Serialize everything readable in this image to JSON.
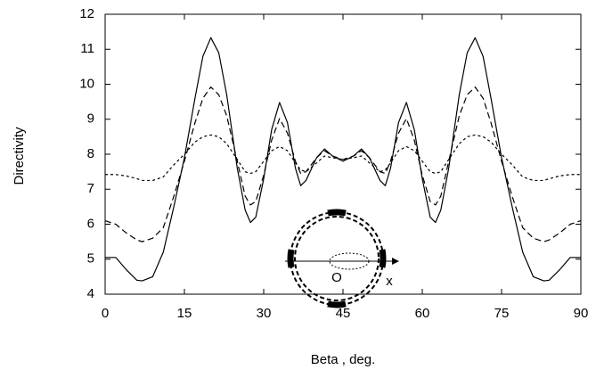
{
  "chart_data": {
    "type": "line",
    "xlabel": "Beta ,  deg.",
    "ylabel": "Directivity",
    "annotations": [
      "O",
      "x"
    ],
    "x": [
      0,
      2,
      4,
      6,
      7,
      9,
      11,
      13,
      15,
      17,
      18.5,
      20,
      21.5,
      23,
      25,
      26.5,
      27.5,
      28.5,
      30,
      31.5,
      33,
      34.5,
      36,
      37,
      38,
      40,
      41.5,
      43,
      45,
      47,
      48.5,
      50,
      52,
      53,
      54,
      55.5,
      57,
      58.5,
      60,
      61.5,
      62.5,
      63.5,
      65,
      67,
      68.5,
      70,
      71.5,
      73,
      75,
      77,
      79,
      81,
      83,
      84,
      86,
      88,
      90
    ],
    "series": [
      {
        "color": "#000000",
        "dash": "solid",
        "values": [
          5.05,
          5.05,
          4.7,
          4.4,
          4.38,
          4.5,
          5.2,
          6.5,
          7.9,
          9.6,
          10.8,
          11.33,
          10.9,
          9.7,
          7.6,
          6.4,
          6.05,
          6.2,
          7.3,
          8.7,
          9.48,
          8.9,
          7.6,
          7.1,
          7.25,
          7.9,
          8.15,
          7.95,
          7.8,
          7.95,
          8.15,
          7.9,
          7.25,
          7.1,
          7.6,
          8.9,
          9.48,
          8.7,
          7.3,
          6.2,
          6.05,
          6.4,
          7.6,
          9.7,
          10.9,
          11.33,
          10.8,
          9.6,
          7.9,
          6.5,
          5.2,
          4.5,
          4.38,
          4.4,
          4.7,
          5.05,
          5.05
        ]
      },
      {
        "color": "#000000",
        "dash": "dashed",
        "values": [
          6.1,
          6.0,
          5.75,
          5.55,
          5.5,
          5.6,
          5.9,
          6.8,
          7.8,
          8.9,
          9.6,
          9.92,
          9.7,
          9.1,
          7.8,
          6.8,
          6.55,
          6.65,
          7.4,
          8.4,
          9.02,
          8.6,
          7.8,
          7.45,
          7.5,
          7.9,
          8.1,
          7.95,
          7.85,
          7.95,
          8.1,
          7.9,
          7.5,
          7.45,
          7.8,
          8.6,
          9.02,
          8.4,
          7.4,
          6.65,
          6.55,
          6.8,
          7.8,
          9.1,
          9.7,
          9.92,
          9.6,
          8.9,
          7.8,
          6.8,
          5.9,
          5.6,
          5.5,
          5.55,
          5.75,
          6.0,
          6.1
        ]
      },
      {
        "color": "#000000",
        "dash": "dotted",
        "values": [
          7.42,
          7.42,
          7.38,
          7.3,
          7.25,
          7.25,
          7.35,
          7.7,
          8.0,
          8.35,
          8.5,
          8.55,
          8.5,
          8.3,
          7.85,
          7.5,
          7.45,
          7.5,
          7.8,
          8.1,
          8.22,
          8.1,
          7.75,
          7.55,
          7.5,
          7.75,
          7.95,
          7.9,
          7.85,
          7.9,
          7.95,
          7.75,
          7.5,
          7.55,
          7.75,
          8.1,
          8.22,
          8.1,
          7.8,
          7.5,
          7.45,
          7.5,
          7.85,
          8.3,
          8.5,
          8.55,
          8.5,
          8.35,
          8.0,
          7.7,
          7.35,
          7.25,
          7.25,
          7.3,
          7.38,
          7.42,
          7.42
        ]
      }
    ],
    "xlim": [
      0,
      90
    ],
    "xticks": [
      0,
      15,
      30,
      45,
      60,
      75,
      90
    ],
    "ylim": [
      4,
      12
    ],
    "yticks": [
      4,
      5,
      6,
      7,
      8,
      9,
      10,
      11,
      12
    ],
    "grid": false
  }
}
